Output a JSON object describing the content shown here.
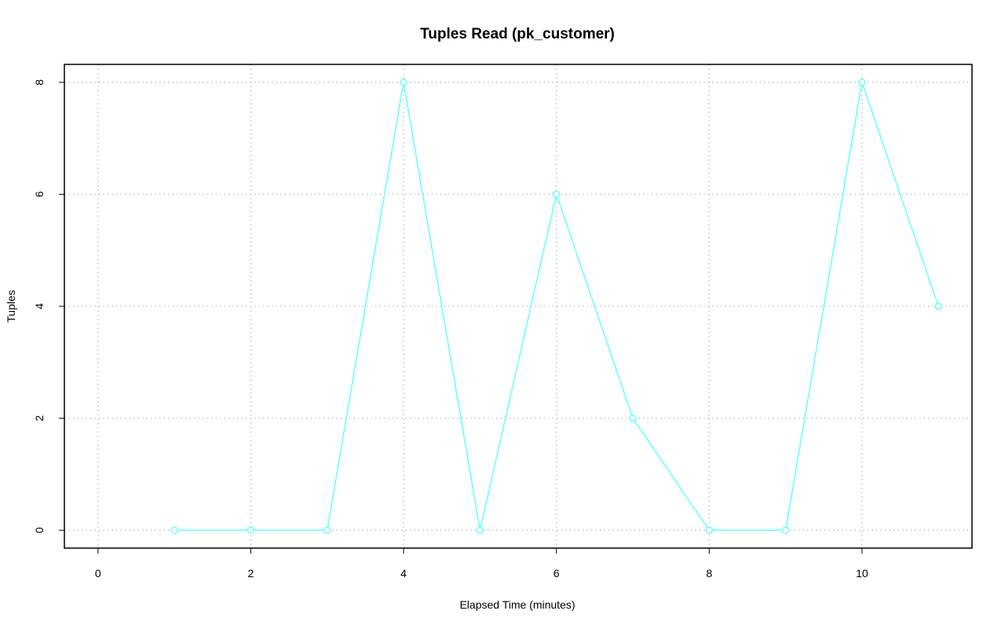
{
  "chart_data": {
    "type": "line",
    "title": "Tuples Read (pk_customer)",
    "x_label": "Elapsed Time (minutes)",
    "y_label": "Tuples",
    "x": [
      1,
      2,
      3,
      4,
      5,
      6,
      7,
      8,
      9,
      10,
      11
    ],
    "series": [
      {
        "name": "pk_customer",
        "color": "#66ffff",
        "values": [
          0,
          0,
          0,
          8,
          0,
          6,
          2,
          0,
          0,
          8,
          4
        ]
      }
    ],
    "xlim": [
      -0.44,
      11.44
    ],
    "xticks": [
      0,
      2,
      4,
      6,
      8,
      10
    ],
    "ylim": [
      -0.32,
      8.32
    ],
    "yticks": [
      0,
      2,
      4,
      6,
      8
    ],
    "grid": true
  }
}
